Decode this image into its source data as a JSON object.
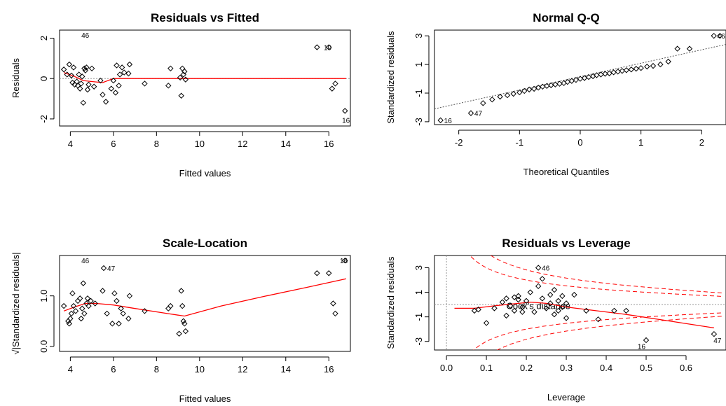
{
  "chart_data": [
    {
      "id": "rvf",
      "type": "scatter",
      "title": "Residuals vs Fitted",
      "xlabel": "Fitted values",
      "ylabel": "Residuals",
      "xlim": [
        3.5,
        17
      ],
      "ylim": [
        -2.35,
        2.4
      ],
      "xticks": [
        4,
        6,
        8,
        10,
        12,
        14,
        16
      ],
      "yticks": [
        -2,
        0,
        2
      ],
      "ref_line": 0,
      "points": [
        [
          3.7,
          0.45
        ],
        [
          3.85,
          0.2
        ],
        [
          3.95,
          0.7
        ],
        [
          4.05,
          0.15
        ],
        [
          4.1,
          -0.2
        ],
        [
          4.15,
          0.55
        ],
        [
          4.2,
          -0.3
        ],
        [
          4.3,
          -0.15
        ],
        [
          4.35,
          -0.35
        ],
        [
          4.4,
          0.2
        ],
        [
          4.45,
          -0.5
        ],
        [
          4.5,
          -0.25
        ],
        [
          4.55,
          0.1
        ],
        [
          4.6,
          -1.2
        ],
        [
          4.65,
          0.5
        ],
        [
          4.7,
          0.4
        ],
        [
          4.75,
          0.55
        ],
        [
          4.8,
          -0.55
        ],
        [
          4.85,
          -0.3
        ],
        [
          5.0,
          0.5
        ],
        [
          5.1,
          -0.4
        ],
        [
          5.4,
          -0.1
        ],
        [
          5.5,
          -0.8
        ],
        [
          5.65,
          -1.15
        ],
        [
          5.9,
          -0.5
        ],
        [
          6.0,
          -0.1
        ],
        [
          6.1,
          -0.7
        ],
        [
          6.15,
          0.65
        ],
        [
          6.25,
          -0.35
        ],
        [
          6.3,
          0.2
        ],
        [
          6.4,
          0.55
        ],
        [
          6.5,
          0.3
        ],
        [
          6.7,
          0.25
        ],
        [
          6.75,
          0.7
        ],
        [
          7.45,
          -0.25
        ],
        [
          8.55,
          -0.35
        ],
        [
          8.65,
          0.5
        ],
        [
          9.1,
          0.05
        ],
        [
          9.15,
          -0.85
        ],
        [
          9.2,
          0.5
        ],
        [
          9.25,
          0.2
        ],
        [
          9.35,
          -0.05
        ],
        [
          9.3,
          0.35
        ],
        [
          15.45,
          1.55
        ],
        [
          16.0,
          1.55
        ],
        [
          16.15,
          -0.5
        ],
        [
          16.3,
          -0.25
        ],
        [
          16.75,
          -1.6
        ]
      ],
      "labeled_points": [
        {
          "x": 4.35,
          "y": 2.15,
          "label": "46"
        },
        {
          "x": 15.6,
          "y": 1.55,
          "label": "10"
        },
        {
          "x": 16.45,
          "y": -2.05,
          "label": "16"
        }
      ],
      "smooth": [
        [
          3.7,
          0.3
        ],
        [
          4.2,
          0.1
        ],
        [
          4.6,
          -0.1
        ],
        [
          5.0,
          -0.15
        ],
        [
          5.5,
          -0.2
        ],
        [
          6.0,
          0.0
        ],
        [
          7.0,
          0.0
        ],
        [
          9.3,
          0.0
        ],
        [
          12.0,
          0.0
        ],
        [
          16.8,
          0.0
        ]
      ]
    },
    {
      "id": "qq",
      "type": "scatter",
      "title": "Normal Q-Q",
      "xlabel": "Theoretical Quantiles",
      "ylabel": "Standardized residuals",
      "xlim": [
        -2.4,
        2.4
      ],
      "ylim": [
        -3.2,
        3.4
      ],
      "xticks": [
        -2,
        -1,
        0,
        1,
        2
      ],
      "yticks": [
        -3,
        -1,
        1,
        3
      ],
      "ref_line": [
        [
          -2.4,
          -2.1
        ],
        [
          2.4,
          2.4
        ]
      ],
      "points": [
        [
          -2.3,
          -2.9
        ],
        [
          -1.8,
          -2.4
        ],
        [
          -1.6,
          -1.7
        ],
        [
          -1.45,
          -1.45
        ],
        [
          -1.32,
          -1.25
        ],
        [
          -1.2,
          -1.15
        ],
        [
          -1.1,
          -1.05
        ],
        [
          -1.0,
          -0.95
        ],
        [
          -0.92,
          -0.85
        ],
        [
          -0.84,
          -0.75
        ],
        [
          -0.76,
          -0.7
        ],
        [
          -0.69,
          -0.62
        ],
        [
          -0.62,
          -0.55
        ],
        [
          -0.55,
          -0.5
        ],
        [
          -0.48,
          -0.45
        ],
        [
          -0.41,
          -0.4
        ],
        [
          -0.34,
          -0.35
        ],
        [
          -0.27,
          -0.3
        ],
        [
          -0.21,
          -0.22
        ],
        [
          -0.14,
          -0.15
        ],
        [
          -0.07,
          -0.08
        ],
        [
          0.0,
          0.0
        ],
        [
          0.07,
          0.05
        ],
        [
          0.14,
          0.12
        ],
        [
          0.21,
          0.18
        ],
        [
          0.27,
          0.25
        ],
        [
          0.34,
          0.3
        ],
        [
          0.41,
          0.35
        ],
        [
          0.48,
          0.38
        ],
        [
          0.55,
          0.45
        ],
        [
          0.62,
          0.5
        ],
        [
          0.69,
          0.55
        ],
        [
          0.76,
          0.6
        ],
        [
          0.84,
          0.65
        ],
        [
          0.92,
          0.7
        ],
        [
          1.0,
          0.75
        ],
        [
          1.1,
          0.85
        ],
        [
          1.2,
          0.9
        ],
        [
          1.32,
          1.0
        ],
        [
          1.45,
          1.2
        ],
        [
          1.6,
          2.1
        ],
        [
          1.8,
          2.1
        ],
        [
          2.2,
          3.0
        ],
        [
          2.3,
          3.0
        ]
      ],
      "labeled_points": [
        {
          "x": -2.3,
          "y": -2.9,
          "label": "16"
        },
        {
          "x": -1.8,
          "y": -2.4,
          "label": "47"
        },
        {
          "x": 2.2,
          "y": 3.0,
          "label": "46"
        }
      ]
    },
    {
      "id": "sl",
      "type": "scatter",
      "title": "Scale-Location",
      "xlabel": "Fitted values",
      "ylabel": "√|Standardized residuals|",
      "xlim": [
        3.5,
        17
      ],
      "ylim": [
        -0.1,
        1.8
      ],
      "xticks": [
        4,
        6,
        8,
        10,
        12,
        14,
        16
      ],
      "yticks": [
        0.0,
        1.0
      ],
      "yticklabels": [
        "0.0",
        "1.0"
      ],
      "points": [
        [
          3.7,
          0.8
        ],
        [
          3.9,
          0.5
        ],
        [
          3.95,
          0.45
        ],
        [
          4.0,
          0.55
        ],
        [
          4.05,
          0.65
        ],
        [
          4.1,
          1.05
        ],
        [
          4.15,
          0.8
        ],
        [
          4.25,
          0.7
        ],
        [
          4.35,
          0.9
        ],
        [
          4.45,
          0.95
        ],
        [
          4.5,
          0.55
        ],
        [
          4.55,
          0.75
        ],
        [
          4.6,
          1.25
        ],
        [
          4.65,
          0.65
        ],
        [
          4.75,
          0.85
        ],
        [
          4.8,
          0.95
        ],
        [
          4.85,
          0.8
        ],
        [
          4.95,
          0.9
        ],
        [
          5.15,
          0.85
        ],
        [
          5.5,
          1.1
        ],
        [
          5.55,
          1.55
        ],
        [
          5.7,
          0.65
        ],
        [
          5.95,
          0.45
        ],
        [
          6.05,
          1.05
        ],
        [
          6.15,
          0.9
        ],
        [
          6.25,
          0.45
        ],
        [
          6.35,
          0.75
        ],
        [
          6.45,
          0.65
        ],
        [
          6.75,
          1.0
        ],
        [
          6.7,
          0.55
        ],
        [
          7.45,
          0.7
        ],
        [
          8.55,
          0.75
        ],
        [
          8.65,
          0.8
        ],
        [
          9.05,
          0.25
        ],
        [
          9.15,
          1.1
        ],
        [
          9.2,
          0.8
        ],
        [
          9.25,
          0.5
        ],
        [
          9.3,
          0.45
        ],
        [
          9.35,
          0.3
        ],
        [
          15.45,
          1.45
        ],
        [
          16.0,
          1.45
        ],
        [
          16.2,
          0.85
        ],
        [
          16.3,
          0.65
        ],
        [
          16.75,
          1.7
        ]
      ],
      "labeled_points": [
        {
          "x": 4.35,
          "y": 1.7,
          "label": "46"
        },
        {
          "x": 5.55,
          "y": 1.55,
          "label": "47"
        },
        {
          "x": 16.35,
          "y": 1.7,
          "label": "16"
        }
      ],
      "smooth": [
        [
          3.7,
          0.7
        ],
        [
          4.2,
          0.78
        ],
        [
          4.7,
          0.85
        ],
        [
          5.2,
          0.85
        ],
        [
          6.0,
          0.82
        ],
        [
          7.0,
          0.75
        ],
        [
          8.5,
          0.65
        ],
        [
          9.3,
          0.6
        ],
        [
          11.0,
          0.8
        ],
        [
          13.0,
          0.99
        ],
        [
          15.0,
          1.17
        ],
        [
          16.8,
          1.34
        ]
      ]
    },
    {
      "id": "rvl",
      "type": "scatter",
      "title": "Residuals vs Leverage",
      "xlabel": "Leverage",
      "ylabel": "Standardized residuals",
      "xlim": [
        -0.03,
        0.7
      ],
      "ylim": [
        -3.7,
        4.0
      ],
      "xticks": [
        0.0,
        0.1,
        0.2,
        0.3,
        0.4,
        0.5,
        0.6
      ],
      "xticklabels": [
        "0.0",
        "0.1",
        "0.2",
        "0.3",
        "0.4",
        "0.5",
        "0.6"
      ],
      "yticks": [
        -3,
        -1,
        1,
        3
      ],
      "ref_line": 0,
      "annotation": "Cook's distance",
      "points": [
        [
          0.07,
          -0.5
        ],
        [
          0.08,
          -0.4
        ],
        [
          0.1,
          -1.5
        ],
        [
          0.12,
          -0.3
        ],
        [
          0.14,
          0.2
        ],
        [
          0.15,
          0.5
        ],
        [
          0.15,
          -0.9
        ],
        [
          0.16,
          -0.1
        ],
        [
          0.17,
          0.6
        ],
        [
          0.17,
          -0.5
        ],
        [
          0.18,
          0.4
        ],
        [
          0.18,
          0.7
        ],
        [
          0.19,
          -0.2
        ],
        [
          0.19,
          -0.6
        ],
        [
          0.2,
          0.3
        ],
        [
          0.21,
          1.0
        ],
        [
          0.22,
          -0.6
        ],
        [
          0.23,
          1.5
        ],
        [
          0.24,
          0.5
        ],
        [
          0.24,
          2.1
        ],
        [
          0.25,
          -0.3
        ],
        [
          0.26,
          0.1
        ],
        [
          0.26,
          0.8
        ],
        [
          0.27,
          1.2
        ],
        [
          0.27,
          -0.8
        ],
        [
          0.28,
          0.3
        ],
        [
          0.28,
          -0.5
        ],
        [
          0.29,
          -0.2
        ],
        [
          0.29,
          0.7
        ],
        [
          0.3,
          -1.1
        ],
        [
          0.3,
          0.1
        ],
        [
          0.32,
          0.8
        ],
        [
          0.35,
          -0.5
        ],
        [
          0.38,
          -1.2
        ],
        [
          0.42,
          -0.5
        ],
        [
          0.45,
          -0.5
        ],
        [
          0.5,
          -2.9
        ],
        [
          0.67,
          -2.4
        ],
        [
          0.23,
          3.0
        ]
      ],
      "labeled_points": [
        {
          "x": 0.23,
          "y": 3.0,
          "label": "46"
        },
        {
          "x": 0.47,
          "y": -3.4,
          "label": "16"
        },
        {
          "x": 0.66,
          "y": -2.9,
          "label": "47"
        }
      ],
      "smooth": [
        [
          0.02,
          -0.3
        ],
        [
          0.07,
          -0.3
        ],
        [
          0.12,
          -0.1
        ],
        [
          0.18,
          0.1
        ],
        [
          0.21,
          0.2
        ],
        [
          0.25,
          0.1
        ],
        [
          0.3,
          -0.2
        ],
        [
          0.35,
          -0.4
        ],
        [
          0.45,
          -0.8
        ],
        [
          0.55,
          -1.3
        ],
        [
          0.67,
          -1.9
        ]
      ]
    }
  ]
}
